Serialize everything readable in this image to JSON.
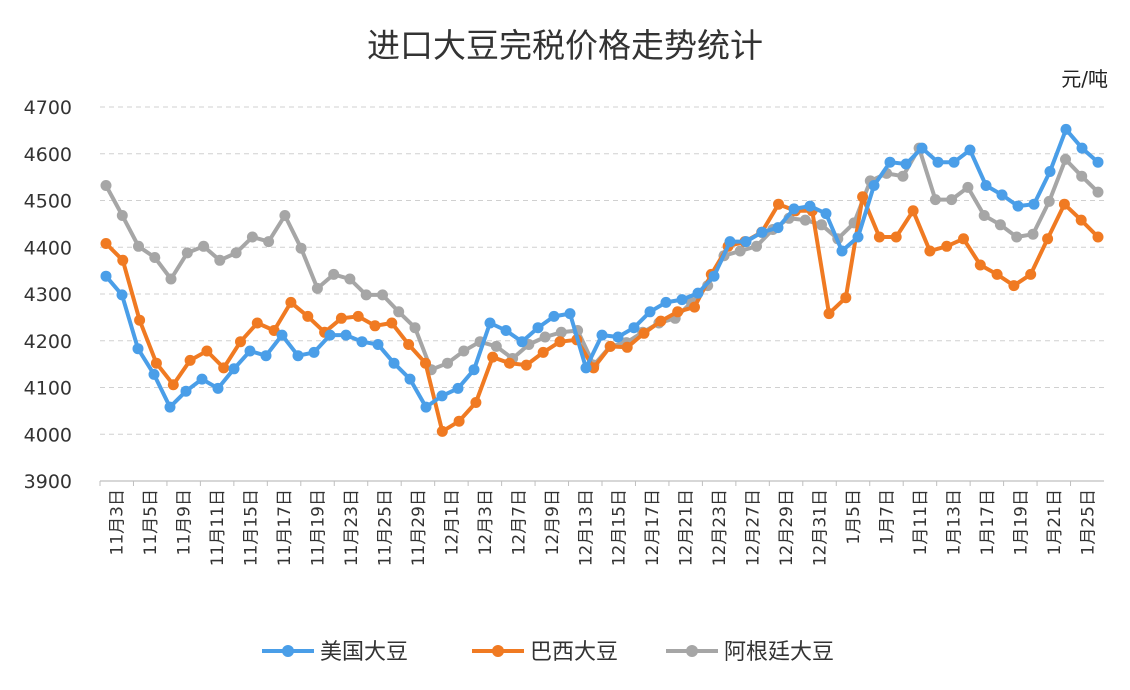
{
  "chart_data": {
    "type": "line",
    "title": "进口大豆完税价格走势统计",
    "unit": "元/吨",
    "ylim": [
      3900,
      4700
    ],
    "yticks": [
      "3900",
      "4000",
      "4100",
      "4200",
      "4300",
      "4400",
      "4500",
      "4600",
      "4700"
    ],
    "grid": true,
    "legend_position": "bottom",
    "x_tick_labels": [
      "11月3日",
      "11月5日",
      "11月9日",
      "11月11日",
      "11月15日",
      "11月17日",
      "11月19日",
      "11月23日",
      "11月25日",
      "11月29日",
      "12月1日",
      "12月3日",
      "12月7日",
      "12月9日",
      "12月13日",
      "12月15日",
      "12月17日",
      "12月21日",
      "12月23日",
      "12月27日",
      "12月29日",
      "12月31日",
      "1月5日",
      "1月7日",
      "1月11日",
      "1月13日",
      "1月17日",
      "1月19日",
      "1月21日",
      "1月25日"
    ],
    "series": [
      {
        "name": "美国大豆",
        "color": "#4a9ee8",
        "values": [
          4338,
          4298,
          4183,
          4128,
          4058,
          4092,
          4118,
          4098,
          4140,
          4178,
          4168,
          4212,
          4168,
          4175,
          4212,
          4212,
          4198,
          4192,
          4152,
          4118,
          4058,
          4082,
          4098,
          4138,
          4238,
          4222,
          4198,
          4228,
          4252,
          4258,
          4142,
          4212,
          4208,
          4228,
          4262,
          4282,
          4288,
          4302,
          4338,
          4412,
          4412,
          4432,
          4442,
          4482,
          4488,
          4472,
          4392,
          4422,
          4532,
          4582,
          4578,
          4612,
          4582,
          4582,
          4608,
          4532,
          4512,
          4488,
          4492,
          4562,
          4652,
          4612,
          4582
        ]
      },
      {
        "name": "巴西大豆",
        "color": "#f07a22",
        "values": [
          4408,
          4372,
          4244,
          4152,
          4106,
          4158,
          4178,
          4142,
          4198,
          4238,
          4222,
          4282,
          4252,
          4218,
          4248,
          4252,
          4232,
          4238,
          4192,
          4152,
          4006,
          4028,
          4068,
          4165,
          4152,
          4148,
          4175,
          4198,
          4202,
          4142,
          4188,
          4186,
          4216,
          4242,
          4262,
          4272,
          4342,
          4402,
          4412,
          4432,
          4492,
          4478,
          4478,
          4258,
          4292,
          4508,
          4422,
          4422,
          4478,
          4392,
          4402,
          4418,
          4362,
          4342,
          4318,
          4342,
          4418,
          4492,
          4458,
          4422
        ]
      },
      {
        "name": "阿根廷大豆",
        "color": "#a6a6a6",
        "values": [
          4532,
          4468,
          4402,
          4378,
          4332,
          4388,
          4402,
          4372,
          4388,
          4422,
          4412,
          4468,
          4398,
          4312,
          4342,
          4332,
          4298,
          4298,
          4262,
          4228,
          4138,
          4152,
          4178,
          4198,
          4188,
          4162,
          4192,
          4208,
          4218,
          4222,
          4148,
          4188,
          4196,
          4218,
          4238,
          4248,
          4282,
          4318,
          4382,
          4392,
          4402,
          4438,
          4462,
          4458,
          4448,
          4418,
          4452,
          4542,
          4558,
          4552,
          4612,
          4502,
          4502,
          4528,
          4468,
          4448,
          4422,
          4428,
          4498,
          4588,
          4552,
          4518
        ]
      }
    ]
  }
}
